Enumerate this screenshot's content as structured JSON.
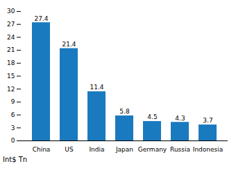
{
  "chart_data": {
    "type": "bar",
    "categories": [
      "China",
      "US",
      "India",
      "Japan",
      "Germany",
      "Russia",
      "Indonesia"
    ],
    "values": [
      27.4,
      21.4,
      11.4,
      5.8,
      4.5,
      4.3,
      3.7
    ],
    "color": "#1a7abf",
    "ylabel": "Int$ Tn",
    "ylim": [
      0,
      30
    ],
    "yticks": [
      0,
      3,
      6,
      9,
      12,
      15,
      18,
      21,
      24,
      27,
      30
    ],
    "data_labels": true,
    "grid": false
  }
}
